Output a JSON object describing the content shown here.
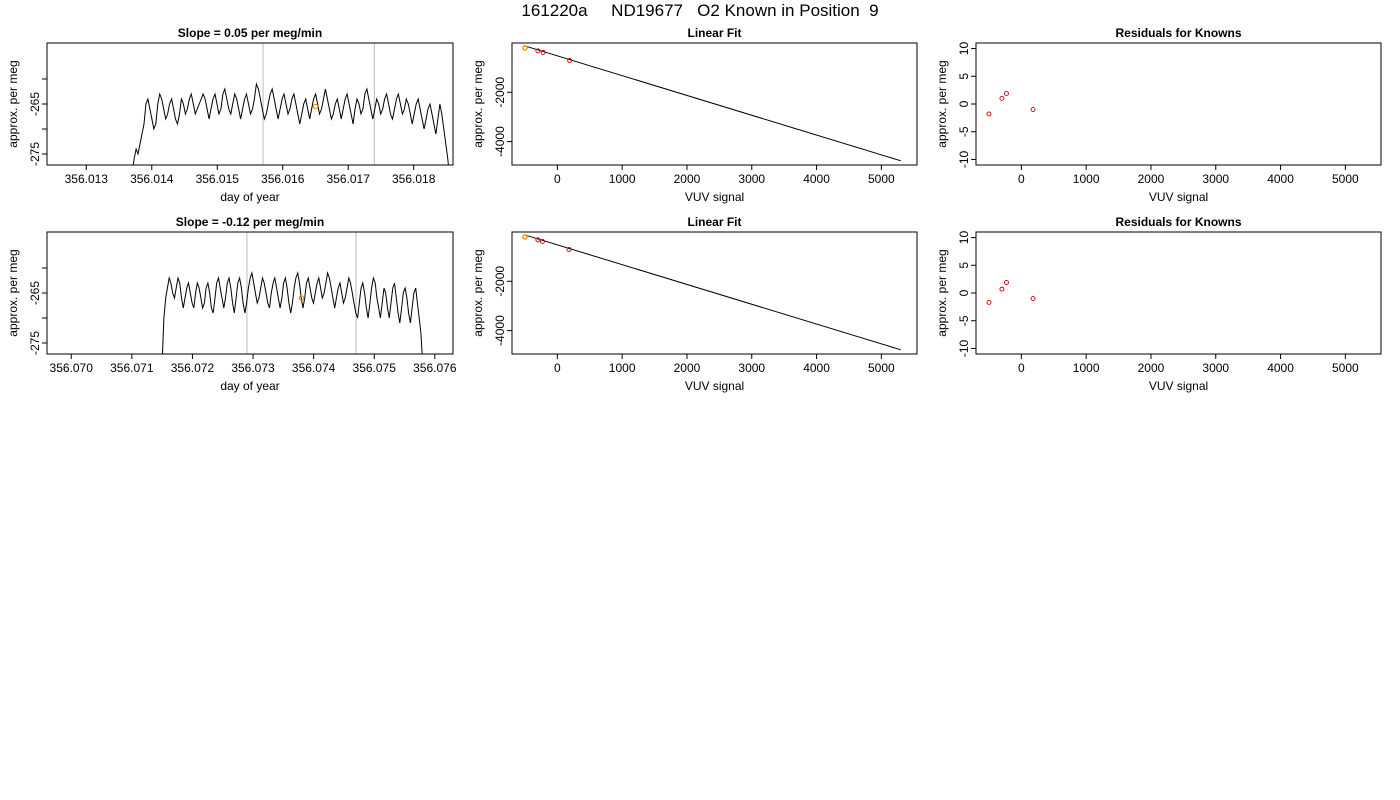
{
  "title": "161220a     ND19677   O2 Known in Position  9",
  "colors": {
    "line": "#000000",
    "marker": "#ff8c00",
    "residual": "#cc0000",
    "vline": "#c8c8c8"
  },
  "chart_data": [
    {
      "type": "line",
      "title": "Slope =  0.05  per meg/min",
      "xlabel": "day of year",
      "ylabel": "approx. per meg",
      "xlim": [
        356.0124,
        356.0186
      ],
      "ylim": [
        -277.2,
        -252.8
      ],
      "xticks": [
        "356.013",
        "356.014",
        "356.015",
        "356.016",
        "356.017",
        "356.018"
      ],
      "xtick_values": [
        356.013,
        356.014,
        356.015,
        356.016,
        356.017,
        356.018
      ],
      "yticks": [
        "-265",
        "-275"
      ],
      "ytick_values": [
        -265,
        -275
      ],
      "yticks_minor": [
        -260,
        -270
      ],
      "vlines": [
        356.0157,
        356.0174
      ],
      "series_x_range": [
        356.0137,
        356.01855
      ],
      "series_y": [
        -279,
        -276,
        -274,
        -275,
        -273,
        -271,
        -269,
        -265,
        -264,
        -266,
        -268,
        -270,
        -269,
        -265,
        -263,
        -264,
        -266,
        -268,
        -267,
        -265,
        -264,
        -266,
        -268,
        -269,
        -267,
        -264,
        -265,
        -267,
        -266,
        -264,
        -263,
        -265,
        -267,
        -266,
        -265,
        -264,
        -263,
        -264,
        -266,
        -268,
        -266,
        -264,
        -263,
        -265,
        -267,
        -266,
        -263,
        -262,
        -264,
        -266,
        -267,
        -265,
        -263,
        -264,
        -266,
        -268,
        -266,
        -264,
        -263,
        -265,
        -267,
        -266,
        -264,
        -261,
        -262,
        -264,
        -266,
        -268,
        -267,
        -265,
        -263,
        -262,
        -264,
        -266,
        -268,
        -266,
        -264,
        -263,
        -265,
        -267,
        -266,
        -264,
        -263,
        -265,
        -267,
        -269,
        -267,
        -265,
        -264,
        -266,
        -268,
        -266,
        -264,
        -263,
        -265,
        -267,
        -266,
        -264,
        -262,
        -264,
        -266,
        -268,
        -267,
        -265,
        -264,
        -266,
        -268,
        -266,
        -264,
        -263,
        -265,
        -267,
        -269,
        -266,
        -264,
        -265,
        -267,
        -266,
        -263,
        -262,
        -264,
        -266,
        -268,
        -266,
        -264,
        -265,
        -267,
        -266,
        -264,
        -263,
        -265,
        -267,
        -268,
        -266,
        -264,
        -263,
        -265,
        -267,
        -266,
        -264,
        -265,
        -267,
        -269,
        -267,
        -265,
        -264,
        -266,
        -268,
        -270,
        -268,
        -266,
        -265,
        -267,
        -269,
        -271,
        -268,
        -265,
        -267,
        -270,
        -273,
        -276,
        -280
      ],
      "marker": {
        "x": 356.0165,
        "y": -265.5
      }
    },
    {
      "type": "scatter",
      "title": "Linear Fit",
      "xlabel": "VUV signal",
      "ylabel": "approx. per meg",
      "xlim": [
        -700,
        5550
      ],
      "ylim": [
        -4950,
        0
      ],
      "xticks": [
        "0",
        "1000",
        "2000",
        "3000",
        "4000",
        "5000"
      ],
      "xtick_values": [
        0,
        1000,
        2000,
        3000,
        4000,
        5000
      ],
      "yticks": [
        "-2000",
        "-4000"
      ],
      "ytick_values": [
        -2000,
        -4000
      ],
      "points": [
        [
          -500,
          -200
        ],
        [
          -300,
          -320
        ],
        [
          -220,
          -380
        ],
        [
          190,
          -710
        ]
      ],
      "fit_line": [
        [
          -500,
          -120
        ],
        [
          5300,
          -4780
        ]
      ],
      "marker": {
        "x": -500,
        "y": -200
      }
    },
    {
      "type": "scatter",
      "title": "Residuals for Knowns",
      "xlabel": "VUV signal",
      "ylabel": "approx. per meg",
      "xlim": [
        -700,
        5550
      ],
      "ylim": [
        -11,
        11
      ],
      "xticks": [
        "0",
        "1000",
        "2000",
        "3000",
        "4000",
        "5000"
      ],
      "xtick_values": [
        0,
        1000,
        2000,
        3000,
        4000,
        5000
      ],
      "yticks": [
        "-10",
        "-5",
        "0",
        "5",
        "10"
      ],
      "ytick_values": [
        -10,
        -5,
        0,
        5,
        10
      ],
      "points": [
        [
          -500,
          -1.8
        ],
        [
          -300,
          1.0
        ],
        [
          -230,
          1.9
        ],
        [
          180,
          -1.0
        ]
      ]
    },
    {
      "type": "line",
      "title": "Slope =  -0.12  per meg/min",
      "xlabel": "day of year",
      "ylabel": "approx. per meg",
      "xlim": [
        356.0696,
        356.0763
      ],
      "ylim": [
        -277.2,
        -252.8
      ],
      "xticks": [
        "356.070",
        "356.071",
        "356.072",
        "356.073",
        "356.074",
        "356.075",
        "356.076"
      ],
      "xtick_values": [
        356.07,
        356.071,
        356.072,
        356.073,
        356.074,
        356.075,
        356.076
      ],
      "yticks": [
        "-265",
        "-275"
      ],
      "ytick_values": [
        -265,
        -275
      ],
      "yticks_minor": [
        -260,
        -270
      ],
      "vlines": [
        356.0729,
        356.0747
      ],
      "series_x_range": [
        356.0715,
        356.0758
      ],
      "series_y": [
        -279,
        -270,
        -266,
        -264,
        -262,
        -263,
        -265,
        -266,
        -264,
        -262,
        -263,
        -266,
        -268,
        -266,
        -264,
        -263,
        -265,
        -267,
        -268,
        -265,
        -263,
        -264,
        -266,
        -268,
        -267,
        -264,
        -263,
        -265,
        -268,
        -269,
        -266,
        -263,
        -262,
        -264,
        -266,
        -268,
        -266,
        -263,
        -262,
        -264,
        -267,
        -269,
        -266,
        -263,
        -262,
        -264,
        -267,
        -269,
        -267,
        -264,
        -262,
        -261,
        -263,
        -265,
        -267,
        -266,
        -264,
        -262,
        -263,
        -265,
        -267,
        -268,
        -265,
        -263,
        -262,
        -264,
        -266,
        -268,
        -266,
        -263,
        -262,
        -264,
        -267,
        -269,
        -267,
        -264,
        -262,
        -261,
        -263,
        -266,
        -268,
        -266,
        -263,
        -262,
        -264,
        -266,
        -267,
        -265,
        -263,
        -262,
        -264,
        -266,
        -265,
        -263,
        -261,
        -262,
        -264,
        -266,
        -268,
        -266,
        -264,
        -263,
        -265,
        -267,
        -266,
        -264,
        -262,
        -263,
        -265,
        -267,
        -269,
        -270,
        -267,
        -264,
        -263,
        -265,
        -268,
        -270,
        -267,
        -264,
        -262,
        -263,
        -266,
        -268,
        -270,
        -267,
        -264,
        -265,
        -268,
        -270,
        -267,
        -264,
        -263,
        -266,
        -269,
        -271,
        -268,
        -265,
        -264,
        -266,
        -269,
        -271,
        -268,
        -265,
        -264,
        -267,
        -270,
        -273,
        -279
      ],
      "marker": {
        "x": 356.0738,
        "y": -266.0
      }
    },
    {
      "type": "scatter",
      "title": "Linear Fit",
      "xlabel": "VUV signal",
      "ylabel": "approx. per meg",
      "xlim": [
        -700,
        5550
      ],
      "ylim": [
        -4950,
        0
      ],
      "xticks": [
        "0",
        "1000",
        "2000",
        "3000",
        "4000",
        "5000"
      ],
      "xtick_values": [
        0,
        1000,
        2000,
        3000,
        4000,
        5000
      ],
      "yticks": [
        "-2000",
        "-4000"
      ],
      "ytick_values": [
        -2000,
        -4000
      ],
      "points": [
        [
          -500,
          -200
        ],
        [
          -300,
          -320
        ],
        [
          -230,
          -380
        ],
        [
          180,
          -710
        ]
      ],
      "fit_line": [
        [
          -500,
          -120
        ],
        [
          5300,
          -4780
        ]
      ],
      "marker": {
        "x": -500,
        "y": -200
      }
    },
    {
      "type": "scatter",
      "title": "Residuals for Knowns",
      "xlabel": "VUV signal",
      "ylabel": "approx. per meg",
      "xlim": [
        -700,
        5550
      ],
      "ylim": [
        -11,
        11
      ],
      "xticks": [
        "0",
        "1000",
        "2000",
        "3000",
        "4000",
        "5000"
      ],
      "xtick_values": [
        0,
        1000,
        2000,
        3000,
        4000,
        5000
      ],
      "yticks": [
        "-10",
        "-5",
        "0",
        "5",
        "10"
      ],
      "ytick_values": [
        -10,
        -5,
        0,
        5,
        10
      ],
      "points": [
        [
          -500,
          -1.7
        ],
        [
          -300,
          0.7
        ],
        [
          -230,
          1.9
        ],
        [
          180,
          -1.0
        ]
      ]
    }
  ]
}
